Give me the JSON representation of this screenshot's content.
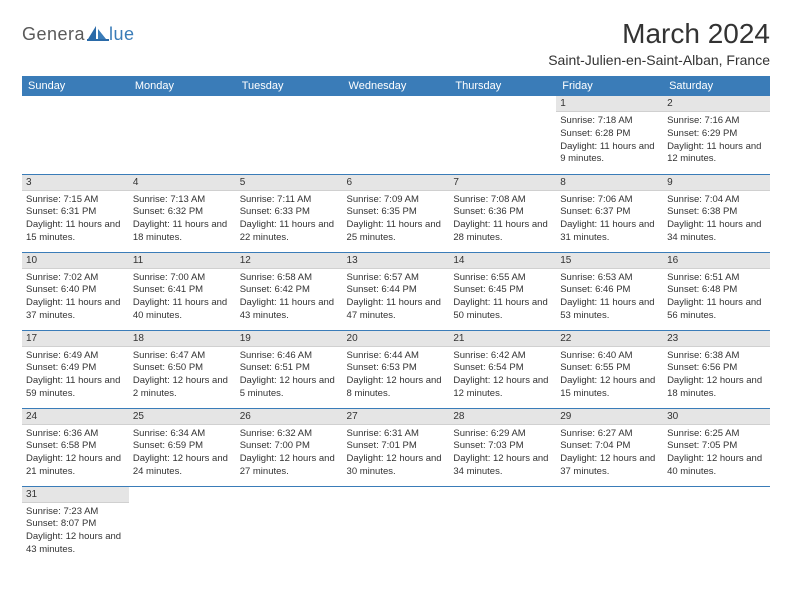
{
  "header": {
    "logo_text1": "Genera",
    "logo_text2": "lue",
    "month_title": "March 2024",
    "location": "Saint-Julien-en-Saint-Alban, France"
  },
  "colors": {
    "header_bg": "#3a7cb8",
    "header_text": "#ffffff",
    "daynum_bg": "#e5e5e5",
    "cell_border": "#3a7cb8",
    "logo_gray": "#5a5a5a",
    "logo_blue": "#3a7cb8"
  },
  "calendar": {
    "days_of_week": [
      "Sunday",
      "Monday",
      "Tuesday",
      "Wednesday",
      "Thursday",
      "Friday",
      "Saturday"
    ],
    "leading_blanks": 5,
    "days": [
      {
        "n": 1,
        "sunrise": "7:18 AM",
        "sunset": "6:28 PM",
        "daylight": "11 hours and 9 minutes."
      },
      {
        "n": 2,
        "sunrise": "7:16 AM",
        "sunset": "6:29 PM",
        "daylight": "11 hours and 12 minutes."
      },
      {
        "n": 3,
        "sunrise": "7:15 AM",
        "sunset": "6:31 PM",
        "daylight": "11 hours and 15 minutes."
      },
      {
        "n": 4,
        "sunrise": "7:13 AM",
        "sunset": "6:32 PM",
        "daylight": "11 hours and 18 minutes."
      },
      {
        "n": 5,
        "sunrise": "7:11 AM",
        "sunset": "6:33 PM",
        "daylight": "11 hours and 22 minutes."
      },
      {
        "n": 6,
        "sunrise": "7:09 AM",
        "sunset": "6:35 PM",
        "daylight": "11 hours and 25 minutes."
      },
      {
        "n": 7,
        "sunrise": "7:08 AM",
        "sunset": "6:36 PM",
        "daylight": "11 hours and 28 minutes."
      },
      {
        "n": 8,
        "sunrise": "7:06 AM",
        "sunset": "6:37 PM",
        "daylight": "11 hours and 31 minutes."
      },
      {
        "n": 9,
        "sunrise": "7:04 AM",
        "sunset": "6:38 PM",
        "daylight": "11 hours and 34 minutes."
      },
      {
        "n": 10,
        "sunrise": "7:02 AM",
        "sunset": "6:40 PM",
        "daylight": "11 hours and 37 minutes."
      },
      {
        "n": 11,
        "sunrise": "7:00 AM",
        "sunset": "6:41 PM",
        "daylight": "11 hours and 40 minutes."
      },
      {
        "n": 12,
        "sunrise": "6:58 AM",
        "sunset": "6:42 PM",
        "daylight": "11 hours and 43 minutes."
      },
      {
        "n": 13,
        "sunrise": "6:57 AM",
        "sunset": "6:44 PM",
        "daylight": "11 hours and 47 minutes."
      },
      {
        "n": 14,
        "sunrise": "6:55 AM",
        "sunset": "6:45 PM",
        "daylight": "11 hours and 50 minutes."
      },
      {
        "n": 15,
        "sunrise": "6:53 AM",
        "sunset": "6:46 PM",
        "daylight": "11 hours and 53 minutes."
      },
      {
        "n": 16,
        "sunrise": "6:51 AM",
        "sunset": "6:48 PM",
        "daylight": "11 hours and 56 minutes."
      },
      {
        "n": 17,
        "sunrise": "6:49 AM",
        "sunset": "6:49 PM",
        "daylight": "11 hours and 59 minutes."
      },
      {
        "n": 18,
        "sunrise": "6:47 AM",
        "sunset": "6:50 PM",
        "daylight": "12 hours and 2 minutes."
      },
      {
        "n": 19,
        "sunrise": "6:46 AM",
        "sunset": "6:51 PM",
        "daylight": "12 hours and 5 minutes."
      },
      {
        "n": 20,
        "sunrise": "6:44 AM",
        "sunset": "6:53 PM",
        "daylight": "12 hours and 8 minutes."
      },
      {
        "n": 21,
        "sunrise": "6:42 AM",
        "sunset": "6:54 PM",
        "daylight": "12 hours and 12 minutes."
      },
      {
        "n": 22,
        "sunrise": "6:40 AM",
        "sunset": "6:55 PM",
        "daylight": "12 hours and 15 minutes."
      },
      {
        "n": 23,
        "sunrise": "6:38 AM",
        "sunset": "6:56 PM",
        "daylight": "12 hours and 18 minutes."
      },
      {
        "n": 24,
        "sunrise": "6:36 AM",
        "sunset": "6:58 PM",
        "daylight": "12 hours and 21 minutes."
      },
      {
        "n": 25,
        "sunrise": "6:34 AM",
        "sunset": "6:59 PM",
        "daylight": "12 hours and 24 minutes."
      },
      {
        "n": 26,
        "sunrise": "6:32 AM",
        "sunset": "7:00 PM",
        "daylight": "12 hours and 27 minutes."
      },
      {
        "n": 27,
        "sunrise": "6:31 AM",
        "sunset": "7:01 PM",
        "daylight": "12 hours and 30 minutes."
      },
      {
        "n": 28,
        "sunrise": "6:29 AM",
        "sunset": "7:03 PM",
        "daylight": "12 hours and 34 minutes."
      },
      {
        "n": 29,
        "sunrise": "6:27 AM",
        "sunset": "7:04 PM",
        "daylight": "12 hours and 37 minutes."
      },
      {
        "n": 30,
        "sunrise": "6:25 AM",
        "sunset": "7:05 PM",
        "daylight": "12 hours and 40 minutes."
      },
      {
        "n": 31,
        "sunrise": "7:23 AM",
        "sunset": "8:07 PM",
        "daylight": "12 hours and 43 minutes."
      }
    ],
    "labels": {
      "sunrise": "Sunrise:",
      "sunset": "Sunset:",
      "daylight": "Daylight:"
    }
  }
}
